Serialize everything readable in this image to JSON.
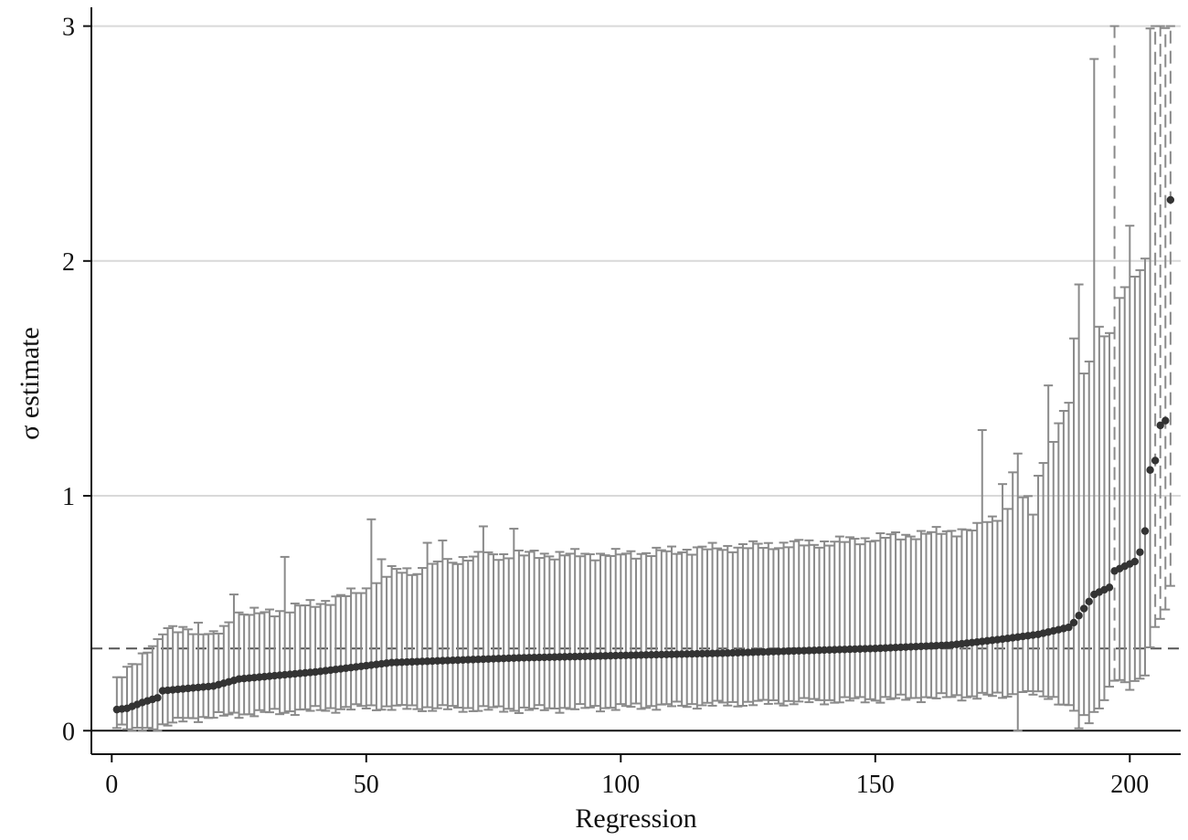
{
  "chart_data": {
    "type": "scatter",
    "xlabel": "Regression",
    "ylabel": "σ estimate",
    "xlim": [
      -4,
      210
    ],
    "ylim": [
      -0.1,
      3.08
    ],
    "xticks": [
      0,
      50,
      100,
      150,
      200
    ],
    "yticks": [
      0,
      1,
      2,
      3
    ],
    "grid": "horizontal",
    "legend": "none",
    "reference_line": {
      "y": 0.35,
      "style": "dashed"
    },
    "zero_line": {
      "y": 0,
      "style": "solid"
    },
    "n_points": 208,
    "y_knots": [
      [
        1,
        0.09
      ],
      [
        3,
        0.095
      ],
      [
        6,
        0.12
      ],
      [
        9,
        0.14
      ],
      [
        10,
        0.17
      ],
      [
        20,
        0.19
      ],
      [
        25,
        0.22
      ],
      [
        40,
        0.25
      ],
      [
        55,
        0.29
      ],
      [
        80,
        0.31
      ],
      [
        100,
        0.32
      ],
      [
        120,
        0.33
      ],
      [
        150,
        0.35
      ],
      [
        165,
        0.365
      ],
      [
        175,
        0.39
      ],
      [
        182,
        0.41
      ],
      [
        188,
        0.44
      ],
      [
        189,
        0.46
      ],
      [
        190,
        0.49
      ],
      [
        191,
        0.52
      ],
      [
        192,
        0.55
      ],
      [
        193,
        0.58
      ],
      [
        194,
        0.59
      ],
      [
        196,
        0.61
      ],
      [
        197,
        0.68
      ],
      [
        199,
        0.7
      ],
      [
        201,
        0.72
      ],
      [
        202,
        0.76
      ],
      [
        203,
        0.85
      ],
      [
        204,
        1.11
      ],
      [
        205,
        1.15
      ],
      [
        206,
        1.3
      ],
      [
        207,
        1.32
      ],
      [
        208,
        2.26
      ]
    ],
    "upper_knots": [
      [
        1,
        0.21
      ],
      [
        5,
        0.3
      ],
      [
        10,
        0.42
      ],
      [
        15,
        0.44
      ],
      [
        20,
        0.4
      ],
      [
        25,
        0.5
      ],
      [
        30,
        0.5
      ],
      [
        40,
        0.54
      ],
      [
        50,
        0.6
      ],
      [
        55,
        0.68
      ],
      [
        60,
        0.68
      ],
      [
        70,
        0.74
      ],
      [
        80,
        0.75
      ],
      [
        100,
        0.75
      ],
      [
        120,
        0.78
      ],
      [
        140,
        0.8
      ],
      [
        160,
        0.84
      ],
      [
        170,
        0.86
      ],
      [
        180,
        1.0
      ],
      [
        185,
        1.25
      ],
      [
        190,
        1.5
      ],
      [
        193,
        1.6
      ],
      [
        196,
        1.7
      ],
      [
        199,
        1.9
      ],
      [
        203,
        2.0
      ],
      [
        204,
        3.0
      ],
      [
        208,
        3.0
      ]
    ],
    "lower_knots": [
      [
        1,
        0.02
      ],
      [
        5,
        0.0
      ],
      [
        10,
        0.02
      ],
      [
        15,
        0.05
      ],
      [
        25,
        0.07
      ],
      [
        50,
        0.1
      ],
      [
        80,
        0.09
      ],
      [
        100,
        0.1
      ],
      [
        130,
        0.12
      ],
      [
        160,
        0.14
      ],
      [
        175,
        0.15
      ],
      [
        180,
        0.16
      ],
      [
        185,
        0.14
      ],
      [
        188,
        0.1
      ],
      [
        190,
        0.08
      ],
      [
        192,
        0.04
      ],
      [
        195,
        0.14
      ],
      [
        197,
        0.22
      ],
      [
        200,
        0.18
      ],
      [
        203,
        0.25
      ],
      [
        205,
        0.45
      ],
      [
        207,
        0.5
      ],
      [
        208,
        0.62
      ]
    ],
    "ci_upper_overrides": [
      [
        9,
        0.39
      ],
      [
        10,
        0.41
      ],
      [
        17,
        0.46
      ],
      [
        24,
        0.58
      ],
      [
        34,
        0.74
      ],
      [
        51,
        0.9
      ],
      [
        53,
        0.73
      ],
      [
        62,
        0.8
      ],
      [
        65,
        0.81
      ],
      [
        73,
        0.87
      ],
      [
        79,
        0.86
      ],
      [
        171,
        1.28
      ],
      [
        175,
        1.05
      ],
      [
        177,
        1.1
      ],
      [
        178,
        1.18
      ],
      [
        181,
        0.92
      ],
      [
        184,
        1.47
      ],
      [
        189,
        1.67
      ],
      [
        190,
        1.9
      ],
      [
        193,
        2.86
      ],
      [
        194,
        1.72
      ],
      [
        197,
        3.0
      ],
      [
        200,
        2.15
      ]
    ],
    "ci_lower_overrides": [
      [
        4,
        0.0
      ],
      [
        6,
        0.0
      ],
      [
        178,
        0.0
      ],
      [
        190,
        0.01
      ]
    ],
    "dashed_ci_indices": [
      197,
      205,
      206,
      207,
      208
    ]
  }
}
